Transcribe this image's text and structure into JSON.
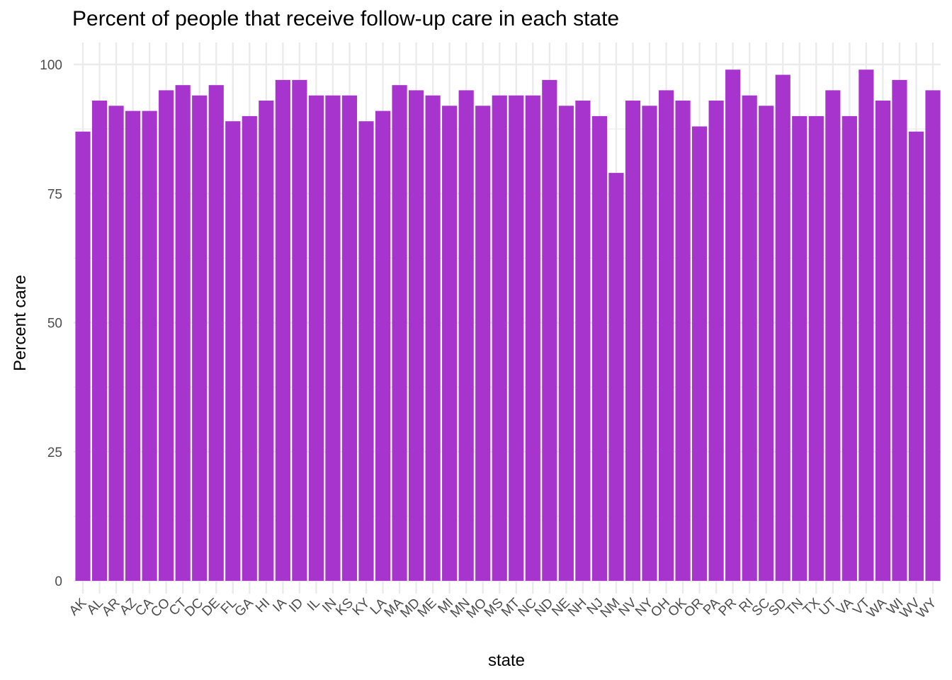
{
  "chart_data": {
    "type": "bar",
    "title": "Percent of people that receive follow-up care in each state",
    "xlabel": "state",
    "ylabel": "Percent care",
    "bar_color": "#A834CE",
    "grid_color": "#EBEBEB",
    "ylim": [
      0,
      100
    ],
    "yticks": [
      0,
      25,
      50,
      75,
      100
    ],
    "grid": true,
    "categories": [
      "AK",
      "AL",
      "AR",
      "AZ",
      "CA",
      "CO",
      "CT",
      "DC",
      "DE",
      "FL",
      "GA",
      "HI",
      "IA",
      "ID",
      "IL",
      "IN",
      "KS",
      "KY",
      "LA",
      "MA",
      "MD",
      "ME",
      "MI",
      "MN",
      "MO",
      "MS",
      "MT",
      "NC",
      "ND",
      "NE",
      "NH",
      "NJ",
      "NM",
      "NV",
      "NY",
      "OH",
      "OK",
      "OR",
      "PA",
      "PR",
      "RI",
      "SC",
      "SD",
      "TN",
      "TX",
      "UT",
      "VA",
      "VT",
      "WA",
      "WI",
      "WV",
      "WY"
    ],
    "values": [
      87,
      93,
      92,
      91,
      91,
      95,
      96,
      94,
      96,
      89,
      90,
      93,
      97,
      97,
      94,
      94,
      94,
      89,
      91,
      96,
      95,
      94,
      92,
      95,
      92,
      94,
      94,
      94,
      97,
      92,
      93,
      90,
      79,
      93,
      92,
      95,
      93,
      88,
      93,
      99,
      94,
      92,
      98,
      90,
      90,
      95,
      90,
      99,
      93,
      97,
      87,
      95
    ]
  }
}
